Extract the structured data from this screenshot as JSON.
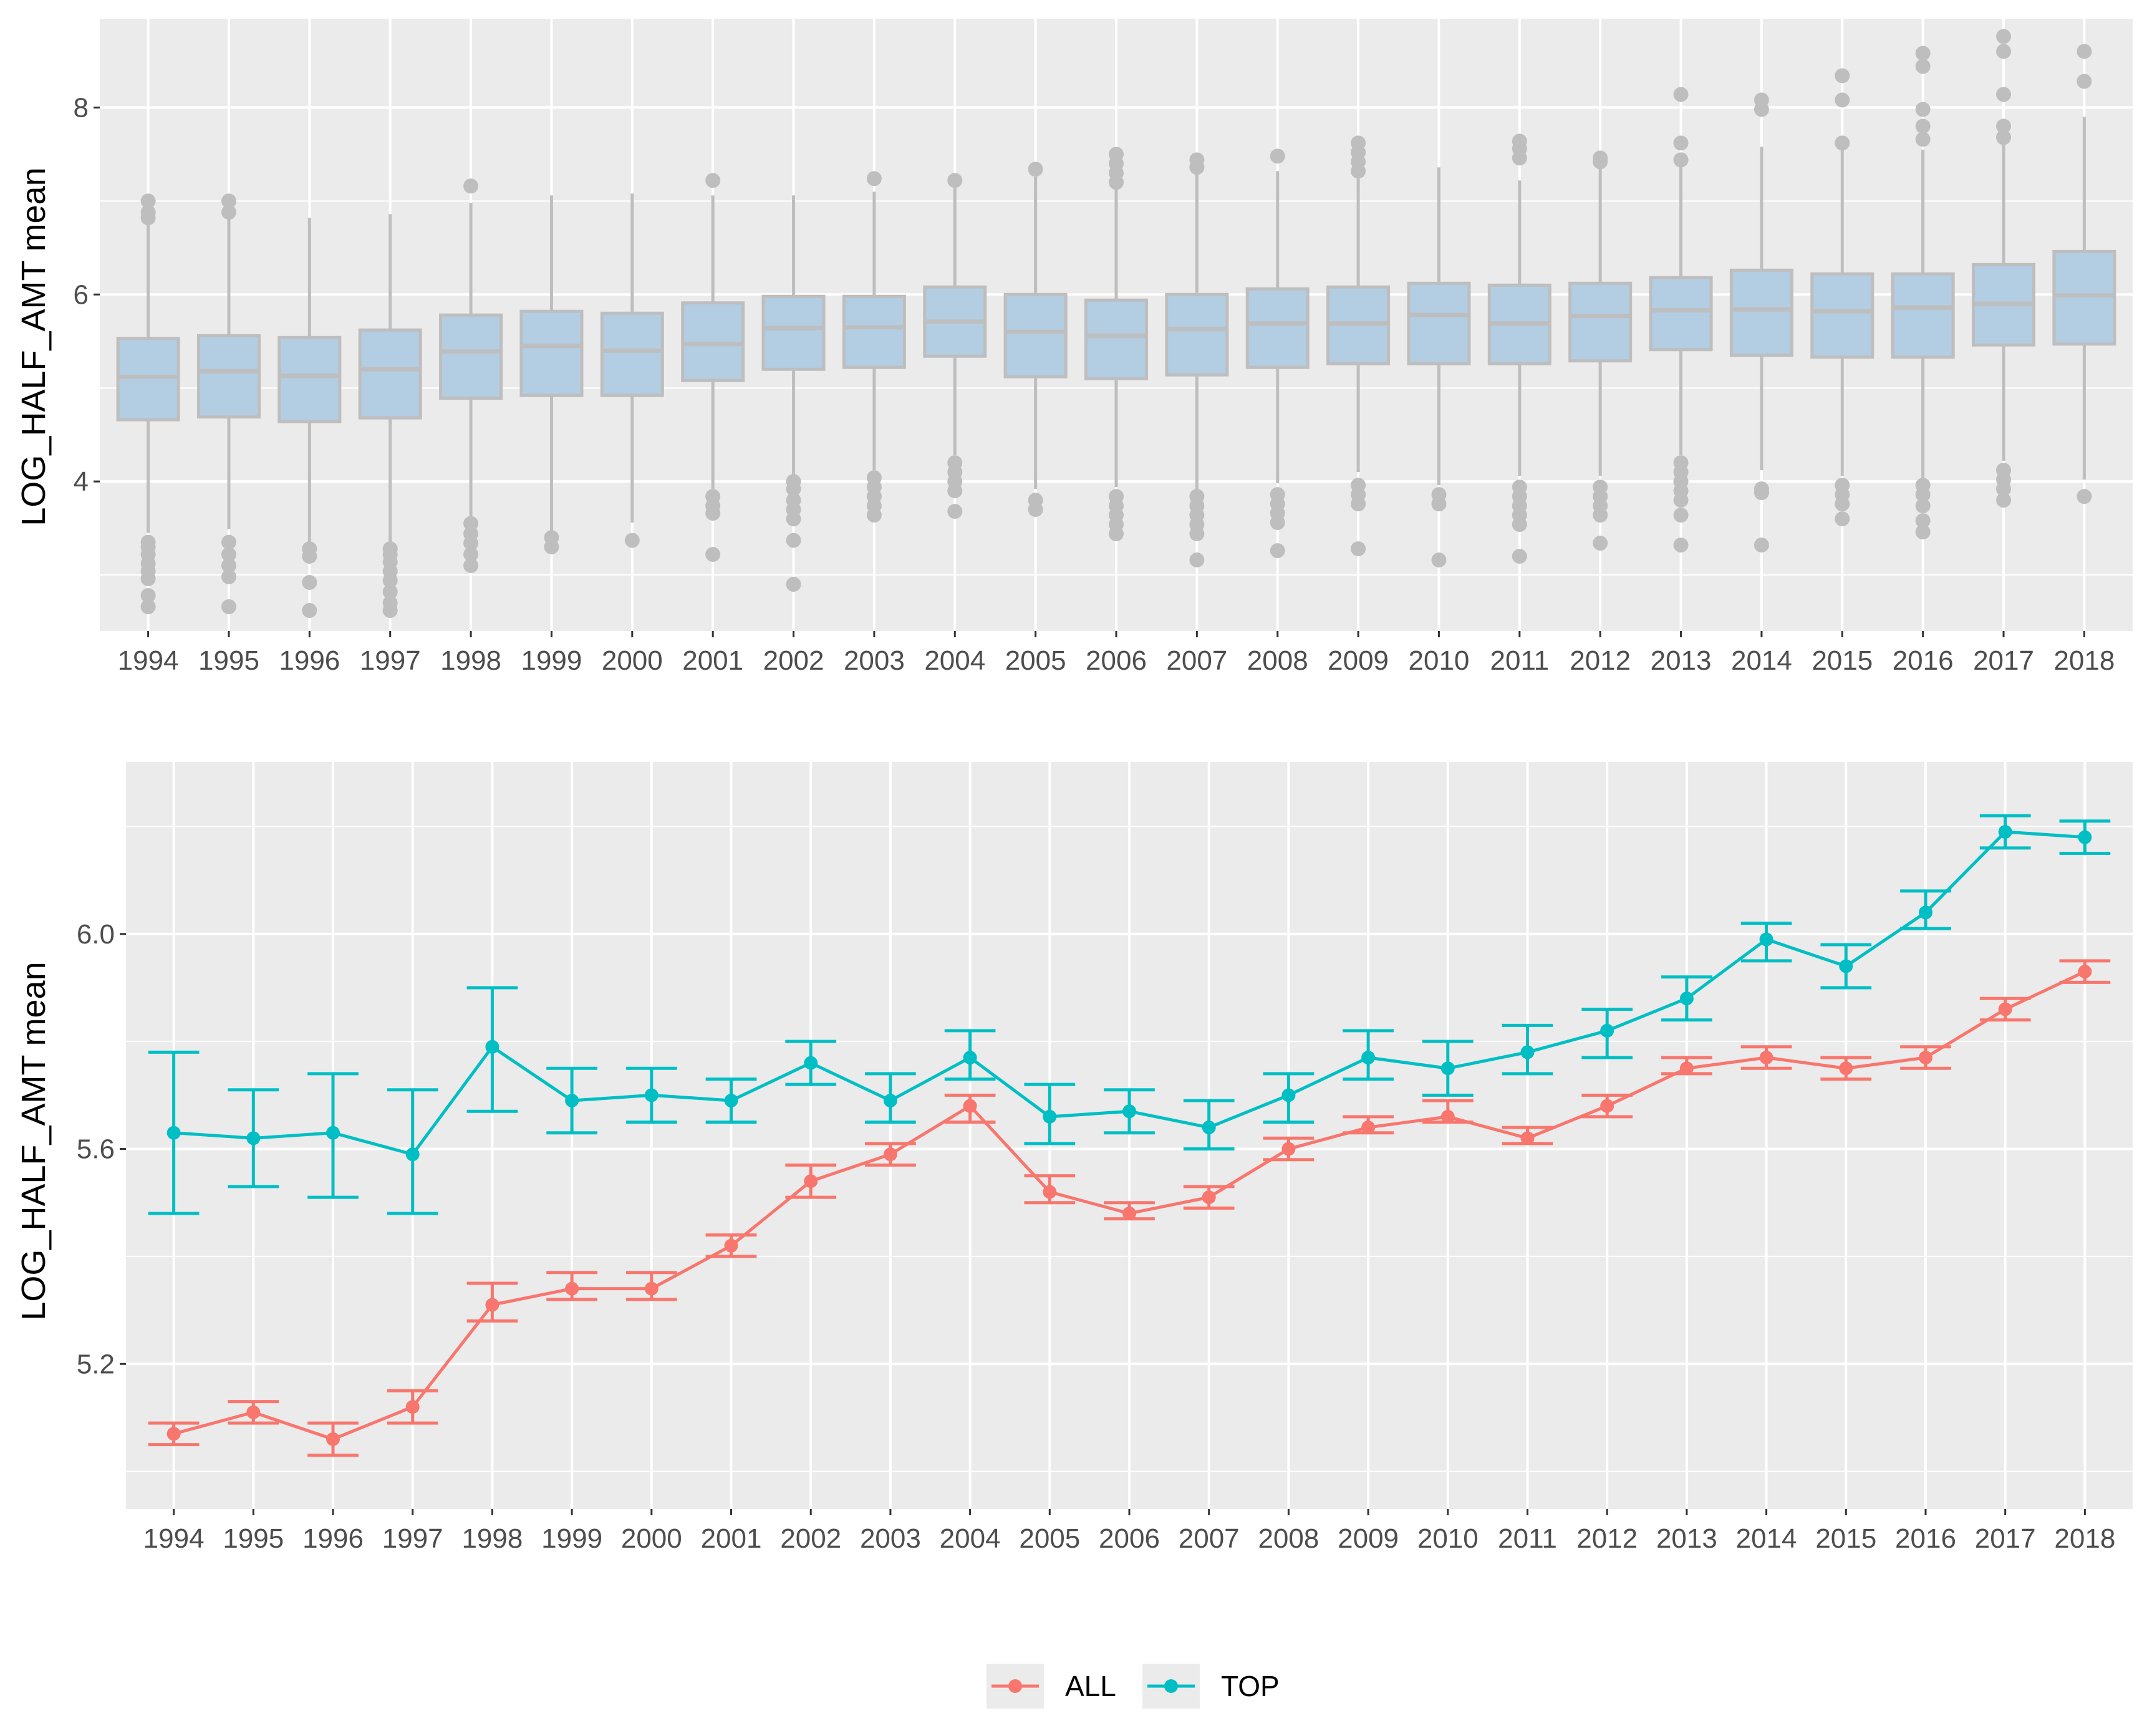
{
  "colors": {
    "panel_bg": "#EBEBEB",
    "grid": "#FFFFFF",
    "box_fill": "#B3CDE3",
    "box_line": "#BEBEBE",
    "all": "#F8766D",
    "top": "#00BFC4"
  },
  "chart_data": [
    {
      "type": "box",
      "ylabel": "LOG_HALF_AMT mean",
      "xlabel": "",
      "categories": [
        "1994",
        "1995",
        "1996",
        "1997",
        "1998",
        "1999",
        "2000",
        "2001",
        "2002",
        "2003",
        "2004",
        "2005",
        "2006",
        "2007",
        "2008",
        "2009",
        "2010",
        "2011",
        "2012",
        "2013",
        "2014",
        "2015",
        "2016",
        "2017",
        "2018"
      ],
      "ylim": [
        2.4,
        8.95
      ],
      "yticks": [
        4,
        6,
        8
      ],
      "grid": true,
      "boxes": [
        {
          "year": "1994",
          "q1": 4.66,
          "median": 5.12,
          "q3": 5.53,
          "lower": 3.45,
          "upper": 6.78
        },
        {
          "year": "1995",
          "q1": 4.69,
          "median": 5.18,
          "q3": 5.56,
          "lower": 3.49,
          "upper": 6.86
        },
        {
          "year": "1996",
          "q1": 4.64,
          "median": 5.13,
          "q3": 5.54,
          "lower": 3.35,
          "upper": 6.82
        },
        {
          "year": "1997",
          "q1": 4.68,
          "median": 5.2,
          "q3": 5.62,
          "lower": 3.34,
          "upper": 6.86
        },
        {
          "year": "1998",
          "q1": 4.89,
          "median": 5.39,
          "q3": 5.78,
          "lower": 3.62,
          "upper": 6.98
        },
        {
          "year": "1999",
          "q1": 4.92,
          "median": 5.45,
          "q3": 5.82,
          "lower": 3.45,
          "upper": 7.06
        },
        {
          "year": "2000",
          "q1": 4.92,
          "median": 5.4,
          "q3": 5.8,
          "lower": 3.56,
          "upper": 7.08
        },
        {
          "year": "2001",
          "q1": 5.08,
          "median": 5.47,
          "q3": 5.91,
          "lower": 3.92,
          "upper": 7.06
        },
        {
          "year": "2002",
          "q1": 5.2,
          "median": 5.64,
          "q3": 5.98,
          "lower": 4.06,
          "upper": 7.06
        },
        {
          "year": "2003",
          "q1": 5.22,
          "median": 5.65,
          "q3": 5.98,
          "lower": 4.12,
          "upper": 7.1
        },
        {
          "year": "2004",
          "q1": 5.34,
          "median": 5.71,
          "q3": 6.08,
          "lower": 4.28,
          "upper": 7.14
        },
        {
          "year": "2005",
          "q1": 5.12,
          "median": 5.6,
          "q3": 6.0,
          "lower": 3.92,
          "upper": 7.26
        },
        {
          "year": "2006",
          "q1": 5.1,
          "median": 5.56,
          "q3": 5.94,
          "lower": 3.94,
          "upper": 7.18
        },
        {
          "year": "2007",
          "q1": 5.14,
          "median": 5.63,
          "q3": 6.0,
          "lower": 3.9,
          "upper": 7.3
        },
        {
          "year": "2008",
          "q1": 5.22,
          "median": 5.69,
          "q3": 6.06,
          "lower": 3.98,
          "upper": 7.32
        },
        {
          "year": "2009",
          "q1": 5.26,
          "median": 5.69,
          "q3": 6.08,
          "lower": 4.1,
          "upper": 7.24
        },
        {
          "year": "2010",
          "q1": 5.26,
          "median": 5.78,
          "q3": 6.12,
          "lower": 3.96,
          "upper": 7.36
        },
        {
          "year": "2011",
          "q1": 5.26,
          "median": 5.69,
          "q3": 6.1,
          "lower": 4.06,
          "upper": 7.22
        },
        {
          "year": "2012",
          "q1": 5.29,
          "median": 5.77,
          "q3": 6.12,
          "lower": 4.06,
          "upper": 7.4
        },
        {
          "year": "2013",
          "q1": 5.41,
          "median": 5.83,
          "q3": 6.18,
          "lower": 4.28,
          "upper": 7.4
        },
        {
          "year": "2014",
          "q1": 5.35,
          "median": 5.84,
          "q3": 6.26,
          "lower": 4.12,
          "upper": 7.58
        },
        {
          "year": "2015",
          "q1": 5.33,
          "median": 5.82,
          "q3": 6.22,
          "lower": 4.06,
          "upper": 7.55
        },
        {
          "year": "2016",
          "q1": 5.33,
          "median": 5.86,
          "q3": 6.22,
          "lower": 4.02,
          "upper": 7.55
        },
        {
          "year": "2017",
          "q1": 5.46,
          "median": 5.9,
          "q3": 6.32,
          "lower": 4.22,
          "upper": 7.62
        },
        {
          "year": "2018",
          "q1": 5.47,
          "median": 5.99,
          "q3": 6.46,
          "lower": 4.02,
          "upper": 7.9
        }
      ],
      "outliers": [
        {
          "year": "1994",
          "values": [
            2.66,
            2.78,
            2.96,
            3.04,
            3.12,
            3.22,
            3.3,
            3.35,
            6.82,
            6.88,
            7.0
          ]
        },
        {
          "year": "1995",
          "values": [
            2.66,
            2.98,
            3.1,
            3.22,
            3.35,
            6.88,
            7.0
          ]
        },
        {
          "year": "1996",
          "values": [
            2.62,
            2.92,
            3.2,
            3.28
          ]
        },
        {
          "year": "1997",
          "values": [
            2.62,
            2.7,
            2.82,
            2.94,
            3.04,
            3.14,
            3.22,
            3.28
          ]
        },
        {
          "year": "1998",
          "values": [
            3.1,
            3.22,
            3.34,
            3.44,
            3.55,
            7.16
          ]
        },
        {
          "year": "1999",
          "values": [
            3.3,
            3.4
          ]
        },
        {
          "year": "2000",
          "values": [
            3.37
          ]
        },
        {
          "year": "2001",
          "values": [
            3.22,
            3.66,
            3.74,
            3.84,
            7.22
          ]
        },
        {
          "year": "2002",
          "values": [
            2.9,
            3.37,
            3.6,
            3.7,
            3.8,
            3.92,
            4.0
          ]
        },
        {
          "year": "2003",
          "values": [
            3.64,
            3.74,
            3.84,
            3.94,
            4.04,
            7.24
          ]
        },
        {
          "year": "2004",
          "values": [
            3.68,
            3.9,
            4.0,
            4.1,
            4.2,
            7.22
          ]
        },
        {
          "year": "2005",
          "values": [
            3.7,
            3.8,
            7.34
          ]
        },
        {
          "year": "2006",
          "values": [
            3.44,
            3.54,
            3.64,
            3.74,
            3.84,
            7.2,
            7.3,
            7.4,
            7.5
          ]
        },
        {
          "year": "2007",
          "values": [
            3.16,
            3.44,
            3.54,
            3.64,
            3.74,
            3.84,
            7.36,
            7.44
          ]
        },
        {
          "year": "2008",
          "values": [
            3.26,
            3.56,
            3.66,
            3.76,
            3.86,
            7.48
          ]
        },
        {
          "year": "2009",
          "values": [
            3.28,
            3.76,
            3.86,
            3.96,
            7.32,
            7.42,
            7.52,
            7.62
          ]
        },
        {
          "year": "2010",
          "values": [
            3.16,
            3.76,
            3.86
          ]
        },
        {
          "year": "2011",
          "values": [
            3.2,
            3.54,
            3.64,
            3.74,
            3.84,
            3.94,
            7.46,
            7.56,
            7.64
          ]
        },
        {
          "year": "2012",
          "values": [
            3.34,
            3.64,
            3.74,
            3.84,
            3.94,
            7.42,
            7.46
          ]
        },
        {
          "year": "2013",
          "values": [
            3.32,
            3.64,
            3.8,
            3.9,
            4.0,
            4.1,
            4.2,
            7.44,
            7.62,
            8.14
          ]
        },
        {
          "year": "2014",
          "values": [
            3.32,
            3.88,
            3.92,
            7.98,
            8.08
          ]
        },
        {
          "year": "2015",
          "values": [
            3.6,
            3.76,
            3.86,
            3.96,
            7.62,
            8.08,
            8.34
          ]
        },
        {
          "year": "2016",
          "values": [
            3.46,
            3.58,
            3.74,
            3.86,
            3.96,
            7.66,
            7.8,
            7.98,
            8.44,
            8.58
          ]
        },
        {
          "year": "2017",
          "values": [
            3.8,
            3.92,
            4.02,
            4.12,
            7.68,
            7.8,
            8.14,
            8.6,
            8.76
          ]
        },
        {
          "year": "2018",
          "values": [
            3.84,
            8.28,
            8.6
          ]
        }
      ]
    },
    {
      "type": "line",
      "ylabel": "LOG_HALF_AMT mean",
      "xlabel": "",
      "categories": [
        "1994",
        "1995",
        "1996",
        "1997",
        "1998",
        "1999",
        "2000",
        "2001",
        "2002",
        "2003",
        "2004",
        "2005",
        "2006",
        "2007",
        "2008",
        "2009",
        "2010",
        "2011",
        "2012",
        "2013",
        "2014",
        "2015",
        "2016",
        "2017",
        "2018"
      ],
      "ylim": [
        4.93,
        6.32
      ],
      "yticks": [
        5.2,
        5.6,
        6.0
      ],
      "ytick_labels": [
        "5.2",
        "5.6",
        "6.0"
      ],
      "grid": true,
      "legend_position": "bottom",
      "series": [
        {
          "name": "ALL",
          "color": "#F8766D",
          "values": [
            5.07,
            5.11,
            5.06,
            5.12,
            5.31,
            5.34,
            5.34,
            5.42,
            5.54,
            5.59,
            5.68,
            5.52,
            5.48,
            5.51,
            5.6,
            5.64,
            5.66,
            5.62,
            5.68,
            5.75,
            5.77,
            5.75,
            5.77,
            5.86,
            5.93
          ],
          "lower": [
            5.05,
            5.09,
            5.03,
            5.09,
            5.28,
            5.32,
            5.32,
            5.4,
            5.51,
            5.57,
            5.65,
            5.5,
            5.47,
            5.49,
            5.58,
            5.63,
            5.65,
            5.61,
            5.66,
            5.74,
            5.75,
            5.73,
            5.75,
            5.84,
            5.91
          ],
          "upper": [
            5.09,
            5.13,
            5.09,
            5.15,
            5.35,
            5.37,
            5.37,
            5.44,
            5.57,
            5.61,
            5.7,
            5.55,
            5.5,
            5.53,
            5.62,
            5.66,
            5.69,
            5.64,
            5.7,
            5.77,
            5.79,
            5.77,
            5.79,
            5.88,
            5.95
          ]
        },
        {
          "name": "TOP",
          "color": "#00BFC4",
          "values": [
            5.63,
            5.62,
            5.63,
            5.59,
            5.79,
            5.69,
            5.7,
            5.69,
            5.76,
            5.69,
            5.77,
            5.66,
            5.67,
            5.64,
            5.7,
            5.77,
            5.75,
            5.78,
            5.82,
            5.88,
            5.99,
            5.94,
            6.04,
            6.19,
            6.18
          ],
          "lower": [
            5.48,
            5.53,
            5.51,
            5.48,
            5.67,
            5.63,
            5.65,
            5.65,
            5.72,
            5.65,
            5.73,
            5.61,
            5.63,
            5.6,
            5.65,
            5.73,
            5.7,
            5.74,
            5.77,
            5.84,
            5.95,
            5.9,
            6.01,
            6.16,
            6.15
          ],
          "upper": [
            5.78,
            5.71,
            5.74,
            5.71,
            5.9,
            5.75,
            5.75,
            5.73,
            5.8,
            5.74,
            5.82,
            5.72,
            5.71,
            5.69,
            5.74,
            5.82,
            5.8,
            5.83,
            5.86,
            5.92,
            6.02,
            5.98,
            6.08,
            6.22,
            6.21
          ]
        }
      ]
    }
  ]
}
